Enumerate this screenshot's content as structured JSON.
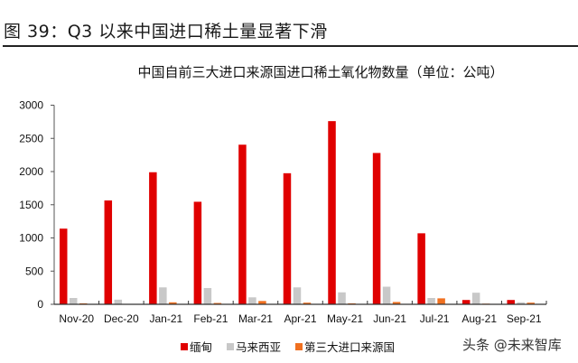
{
  "figure": {
    "title": "图  39：Q3 以来中国进口稀土量显著下滑",
    "watermark": "头条 @未来智库"
  },
  "chart_data": {
    "type": "bar",
    "title": "中国自前三大进口来源国进口稀土氧化物数量（单位：公吨）",
    "xlabel": "",
    "ylabel": "",
    "ylim": [
      0,
      3000
    ],
    "yticks": [
      0,
      500,
      1000,
      1500,
      2000,
      2500,
      3000
    ],
    "grid": false,
    "legend_position": "bottom",
    "categories": [
      "Nov-20",
      "Dec-20",
      "Jan-21",
      "Feb-21",
      "Mar-21",
      "Apr-21",
      "May-21",
      "Jun-21",
      "Jul-21",
      "Aug-21",
      "Sep-21"
    ],
    "series": [
      {
        "name": "缅甸",
        "color": "#e00000",
        "values": [
          1140,
          1565,
          1990,
          1545,
          2405,
          1975,
          2760,
          2280,
          1070,
          65,
          65
        ]
      },
      {
        "name": "马来西亚",
        "color": "#c8c8c8",
        "values": [
          95,
          70,
          255,
          245,
          105,
          255,
          180,
          265,
          95,
          175,
          30
        ]
      },
      {
        "name": "第三大进口来源国",
        "color": "#f07020",
        "values": [
          15,
          0,
          30,
          20,
          50,
          25,
          15,
          35,
          90,
          10,
          25
        ]
      }
    ]
  }
}
